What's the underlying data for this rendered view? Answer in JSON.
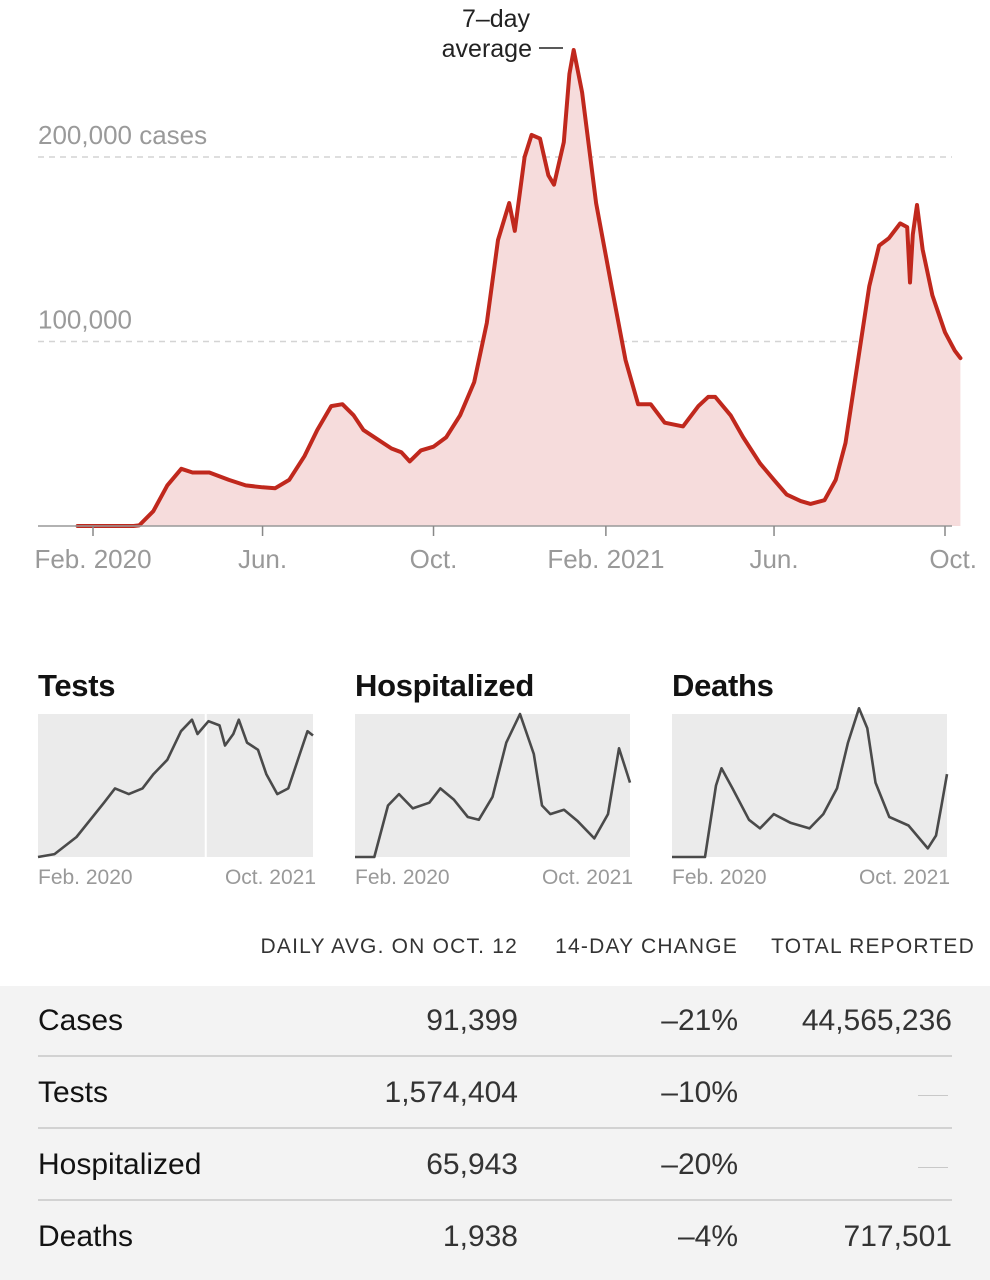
{
  "chart_data": [
    {
      "type": "area",
      "series_label": "7–day average",
      "color": "#c0281d",
      "fill_color": "#f6dcdc",
      "y_ticks": [
        {
          "value": 100000,
          "label": "100,000"
        },
        {
          "value": 200000,
          "label": "200,000 cases"
        }
      ],
      "ylim": [
        0,
        260000
      ],
      "x_ticks": [
        {
          "date": "2020-02-01",
          "label": "Feb. 2020"
        },
        {
          "date": "2020-06-01",
          "label": "Jun."
        },
        {
          "date": "2020-10-01",
          "label": "Oct."
        },
        {
          "date": "2021-02-01",
          "label": "Feb. 2021"
        },
        {
          "date": "2021-06-01",
          "label": "Jun."
        },
        {
          "date": "2021-10-01",
          "label": "Oct."
        }
      ],
      "points": [
        [
          "2020-01-21",
          0
        ],
        [
          "2020-03-01",
          0
        ],
        [
          "2020-03-05",
          300
        ],
        [
          "2020-03-15",
          8000
        ],
        [
          "2020-03-25",
          22000
        ],
        [
          "2020-04-04",
          31000
        ],
        [
          "2020-04-12",
          29000
        ],
        [
          "2020-04-24",
          29000
        ],
        [
          "2020-05-08",
          25000
        ],
        [
          "2020-05-20",
          22000
        ],
        [
          "2020-06-01",
          21000
        ],
        [
          "2020-06-10",
          20500
        ],
        [
          "2020-06-20",
          25000
        ],
        [
          "2020-07-01",
          38000
        ],
        [
          "2020-07-10",
          52000
        ],
        [
          "2020-07-20",
          65000
        ],
        [
          "2020-07-28",
          66000
        ],
        [
          "2020-08-05",
          60000
        ],
        [
          "2020-08-12",
          52000
        ],
        [
          "2020-08-22",
          47000
        ],
        [
          "2020-09-01",
          42000
        ],
        [
          "2020-09-08",
          40000
        ],
        [
          "2020-09-14",
          35000
        ],
        [
          "2020-09-22",
          41000
        ],
        [
          "2020-10-01",
          43000
        ],
        [
          "2020-10-10",
          48000
        ],
        [
          "2020-10-20",
          60000
        ],
        [
          "2020-10-30",
          78000
        ],
        [
          "2020-11-08",
          110000
        ],
        [
          "2020-11-16",
          155000
        ],
        [
          "2020-11-24",
          175000
        ],
        [
          "2020-11-28",
          160000
        ],
        [
          "2020-12-05",
          200000
        ],
        [
          "2020-12-10",
          212000
        ],
        [
          "2020-12-16",
          210000
        ],
        [
          "2020-12-22",
          190000
        ],
        [
          "2020-12-26",
          185000
        ],
        [
          "2021-01-02",
          208000
        ],
        [
          "2021-01-06",
          245000
        ],
        [
          "2021-01-09",
          258000
        ],
        [
          "2021-01-15",
          235000
        ],
        [
          "2021-01-25",
          175000
        ],
        [
          "2021-02-05",
          130000
        ],
        [
          "2021-02-15",
          90000
        ],
        [
          "2021-02-24",
          66000
        ],
        [
          "2021-03-05",
          66000
        ],
        [
          "2021-03-15",
          56000
        ],
        [
          "2021-03-28",
          54000
        ],
        [
          "2021-04-08",
          65000
        ],
        [
          "2021-04-15",
          70000
        ],
        [
          "2021-04-20",
          70000
        ],
        [
          "2021-05-01",
          60000
        ],
        [
          "2021-05-10",
          48000
        ],
        [
          "2021-05-22",
          34000
        ],
        [
          "2021-06-01",
          25000
        ],
        [
          "2021-06-10",
          17000
        ],
        [
          "2021-06-20",
          13500
        ],
        [
          "2021-06-27",
          12000
        ],
        [
          "2021-07-07",
          14000
        ],
        [
          "2021-07-15",
          25000
        ],
        [
          "2021-07-22",
          45000
        ],
        [
          "2021-08-01",
          95000
        ],
        [
          "2021-08-08",
          130000
        ],
        [
          "2021-08-15",
          152000
        ],
        [
          "2021-08-22",
          156000
        ],
        [
          "2021-08-30",
          164000
        ],
        [
          "2021-09-04",
          162000
        ],
        [
          "2021-09-06",
          132000
        ],
        [
          "2021-09-08",
          158000
        ],
        [
          "2021-09-11",
          174000
        ],
        [
          "2021-09-15",
          150000
        ],
        [
          "2021-09-22",
          125000
        ],
        [
          "2021-10-01",
          105000
        ],
        [
          "2021-10-08",
          95000
        ],
        [
          "2021-10-12",
          91000
        ]
      ]
    },
    {
      "type": "area",
      "title": "Tests",
      "x_labels": [
        "Feb. 2020",
        "Oct. 2021"
      ],
      "points": [
        [
          0,
          0
        ],
        [
          0.06,
          2
        ],
        [
          0.14,
          14
        ],
        [
          0.24,
          38
        ],
        [
          0.28,
          48
        ],
        [
          0.33,
          44
        ],
        [
          0.38,
          48
        ],
        [
          0.42,
          58
        ],
        [
          0.47,
          68
        ],
        [
          0.52,
          88
        ],
        [
          0.56,
          96
        ],
        [
          0.58,
          86
        ],
        [
          0.62,
          95
        ],
        [
          0.66,
          92
        ],
        [
          0.68,
          78
        ],
        [
          0.71,
          86
        ],
        [
          0.73,
          96
        ],
        [
          0.76,
          80
        ],
        [
          0.8,
          75
        ],
        [
          0.83,
          58
        ],
        [
          0.87,
          44
        ],
        [
          0.91,
          48
        ],
        [
          0.95,
          71
        ],
        [
          0.98,
          88
        ],
        [
          1.0,
          85
        ]
      ]
    },
    {
      "type": "area",
      "title": "Hospitalized",
      "x_labels": [
        "Feb. 2020",
        "Oct. 2021"
      ],
      "points": [
        [
          0,
          0
        ],
        [
          0.04,
          0
        ],
        [
          0.07,
          0
        ],
        [
          0.12,
          36
        ],
        [
          0.16,
          44
        ],
        [
          0.21,
          34
        ],
        [
          0.27,
          38
        ],
        [
          0.31,
          48
        ],
        [
          0.36,
          40
        ],
        [
          0.41,
          28
        ],
        [
          0.45,
          26
        ],
        [
          0.5,
          42
        ],
        [
          0.55,
          80
        ],
        [
          0.6,
          100
        ],
        [
          0.65,
          72
        ],
        [
          0.68,
          36
        ],
        [
          0.71,
          30
        ],
        [
          0.76,
          33
        ],
        [
          0.81,
          25
        ],
        [
          0.87,
          13
        ],
        [
          0.92,
          30
        ],
        [
          0.96,
          76
        ],
        [
          0.99,
          58
        ],
        [
          1.0,
          52
        ]
      ]
    },
    {
      "type": "area",
      "title": "Deaths",
      "x_labels": [
        "Feb. 2020",
        "Oct. 2021"
      ],
      "points": [
        [
          0,
          0
        ],
        [
          0.12,
          0
        ],
        [
          0.16,
          50
        ],
        [
          0.18,
          62
        ],
        [
          0.22,
          48
        ],
        [
          0.28,
          26
        ],
        [
          0.32,
          20
        ],
        [
          0.37,
          30
        ],
        [
          0.43,
          24
        ],
        [
          0.5,
          20
        ],
        [
          0.55,
          30
        ],
        [
          0.6,
          48
        ],
        [
          0.64,
          80
        ],
        [
          0.68,
          104
        ],
        [
          0.71,
          90
        ],
        [
          0.74,
          52
        ],
        [
          0.79,
          28
        ],
        [
          0.86,
          22
        ],
        [
          0.93,
          6
        ],
        [
          0.96,
          15
        ],
        [
          0.98,
          36
        ],
        [
          1.0,
          58
        ]
      ]
    }
  ],
  "table": {
    "headers": [
      "DAILY AVG. ON OCT. 12",
      "14-DAY CHANGE",
      "TOTAL REPORTED"
    ],
    "rows": [
      {
        "label": "Cases",
        "avg": "91,399",
        "change": "–21%",
        "total": "44,565,236"
      },
      {
        "label": "Tests",
        "avg": "1,574,404",
        "change": "–10%",
        "total": ""
      },
      {
        "label": "Hospitalized",
        "avg": "65,943",
        "change": "–20%",
        "total": ""
      },
      {
        "label": "Deaths",
        "avg": "1,938",
        "change": "–4%",
        "total": "717,501"
      }
    ]
  }
}
